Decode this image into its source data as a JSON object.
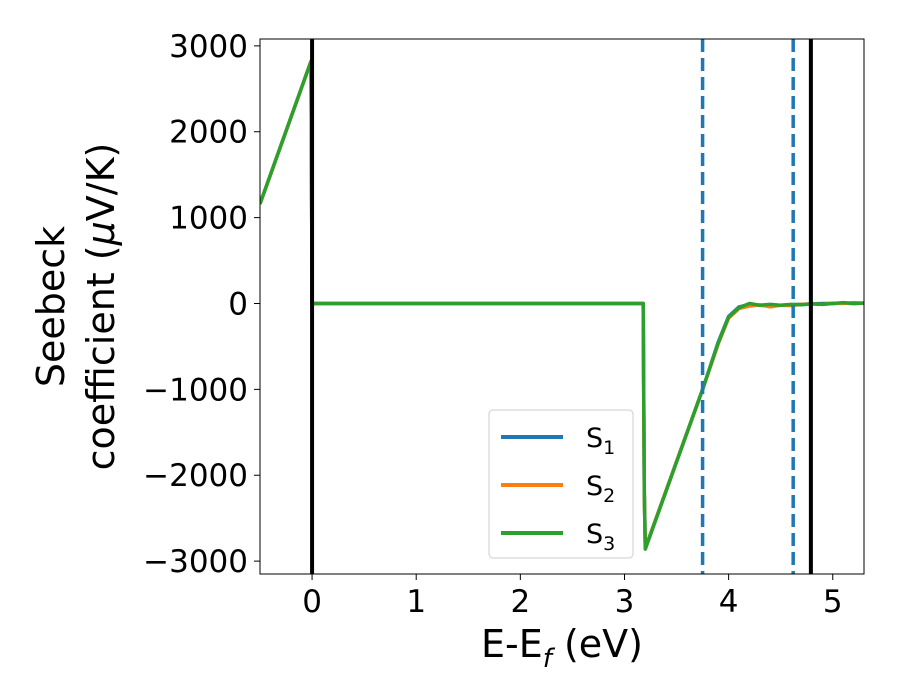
{
  "chart_data": {
    "type": "line",
    "xlabel": {
      "main": "E-E",
      "sub": "f",
      "unit": " (eV)"
    },
    "ylabel": {
      "line1": "Seebeck",
      "line2_prefix": "coefficient  (",
      "mu": "μ",
      "line2_suffix": "V/K)"
    },
    "xlim": [
      -0.5,
      5.3
    ],
    "ylim": [
      -3150,
      3080
    ],
    "xticks": [
      {
        "value": 0,
        "label": "0"
      },
      {
        "value": 1,
        "label": "1"
      },
      {
        "value": 2,
        "label": "2"
      },
      {
        "value": 3,
        "label": "3"
      },
      {
        "value": 4,
        "label": "4"
      },
      {
        "value": 5,
        "label": "5"
      }
    ],
    "yticks": [
      {
        "value": 3000,
        "label": "3000"
      },
      {
        "value": 2000,
        "label": "2000"
      },
      {
        "value": 1000,
        "label": "1000"
      },
      {
        "value": 0,
        "label": "0"
      },
      {
        "value": -1000,
        "label": "−1000"
      },
      {
        "value": -2000,
        "label": "−2000"
      },
      {
        "value": -3000,
        "label": "−3000"
      }
    ],
    "grid": false,
    "legend_position": "lower-right",
    "vlines": [
      {
        "x": 0.0,
        "style": "solid",
        "color": "#000000"
      },
      {
        "x": 4.79,
        "style": "solid",
        "color": "#000000"
      },
      {
        "x": 3.75,
        "style": "dashed",
        "color": "#1f77b4"
      },
      {
        "x": 4.62,
        "style": "dashed",
        "color": "#1f77b4"
      }
    ],
    "series": [
      {
        "name": "S",
        "sub": "1",
        "color": "#1f77b4",
        "x": [
          -0.5,
          -0.01,
          0.0,
          3.18,
          3.19,
          3.2,
          3.75,
          3.9,
          4.0,
          4.1,
          4.2,
          4.3,
          4.4,
          4.5,
          4.6,
          4.7,
          4.8,
          4.9,
          5.0,
          5.1,
          5.2,
          5.3
        ],
        "y": [
          1160,
          2820,
          0,
          0,
          -2200,
          -2850,
          -1000,
          -450,
          -150,
          -40,
          -10,
          -20,
          -30,
          -20,
          -15,
          -10,
          -5,
          0,
          0,
          5,
          0,
          5
        ]
      },
      {
        "name": "S",
        "sub": "2",
        "color": "#ff7f0e",
        "x": [
          -0.5,
          -0.01,
          0.0,
          3.18,
          3.19,
          3.2,
          3.75,
          3.9,
          4.0,
          4.1,
          4.2,
          4.3,
          4.4,
          4.5,
          4.6,
          4.7,
          4.8,
          4.9,
          5.0,
          5.1,
          5.2,
          5.3
        ],
        "y": [
          1160,
          2820,
          0,
          0,
          -2200,
          -2850,
          -1000,
          -470,
          -170,
          -60,
          -30,
          -15,
          -40,
          -20,
          -25,
          -10,
          -5,
          -10,
          5,
          0,
          10,
          5
        ]
      },
      {
        "name": "S",
        "sub": "3",
        "color": "#2ca02c",
        "x": [
          -0.5,
          -0.01,
          0.0,
          3.18,
          3.19,
          3.2,
          3.75,
          3.9,
          4.0,
          4.1,
          4.2,
          4.3,
          4.4,
          4.5,
          4.6,
          4.7,
          4.8,
          4.9,
          5.0,
          5.1,
          5.2,
          5.3
        ],
        "y": [
          1160,
          2820,
          0,
          0,
          -2200,
          -2860,
          -1000,
          -460,
          -160,
          -50,
          0,
          -20,
          -10,
          -20,
          -10,
          -15,
          -5,
          -10,
          0,
          10,
          0,
          5
        ]
      }
    ]
  }
}
